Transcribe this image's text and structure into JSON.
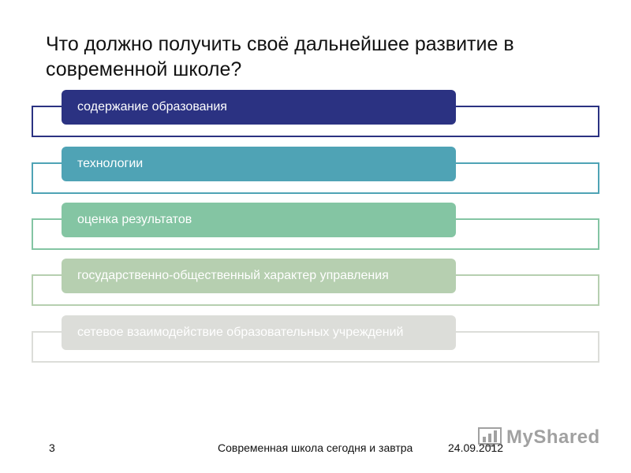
{
  "title": "Что должно получить своё дальнейшее развитие в современной школе?",
  "items": [
    {
      "label": "содержание образования",
      "pill_color": "#2b3282",
      "frame_color": "#2b3282"
    },
    {
      "label": "технологии",
      "pill_color": "#4fa3b5",
      "frame_color": "#4fa3b5"
    },
    {
      "label": "оценка результатов",
      "pill_color": "#84c5a3",
      "frame_color": "#84c5a3"
    },
    {
      "label": "государственно-общественный характер управления",
      "pill_color": "#b6cfb0",
      "frame_color": "#b6cfb0"
    },
    {
      "label": "сетевое взаимодействие образовательных учреждений",
      "pill_color": "#dcddd9",
      "frame_color": "#dcddd9"
    }
  ],
  "footer": {
    "slide_number": "3",
    "caption": "Современная школа сегодня и завтра",
    "date": "24.09.2012"
  },
  "watermark": {
    "text": "MyShared",
    "icon": "chart-icon"
  }
}
